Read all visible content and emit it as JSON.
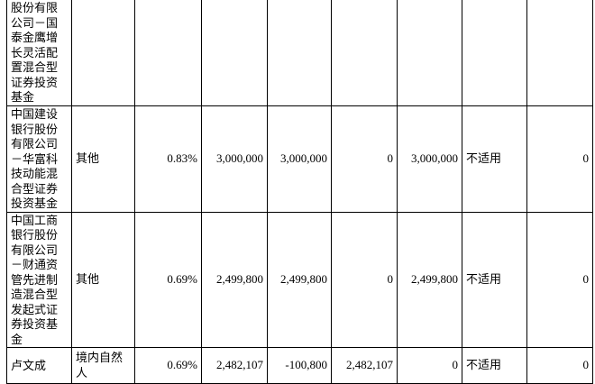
{
  "table": {
    "rows": [
      [
        "股份有限公司－国泰金鹰增长灵活配置混合型证券投资基金"
      ],
      [
        "中国建设银行股份有限公司－华富科技动能混合型证券投资基金",
        "其他",
        "0.83%",
        "3,000,000",
        "3,000,000",
        "0",
        "3,000,000",
        "不适用",
        "0"
      ],
      [
        "中国工商银行股份有限公司－财通资管先进制造混合型发起式证券投资基金",
        "其他",
        "0.69%",
        "2,499,800",
        "2,499,800",
        "0",
        "2,499,800",
        "不适用",
        "0"
      ],
      [
        "卢文成",
        "境内自然人",
        "0.69%",
        "2,482,107",
        "-100,800",
        "2,482,107",
        "0",
        "不适用",
        "0"
      ]
    ]
  }
}
